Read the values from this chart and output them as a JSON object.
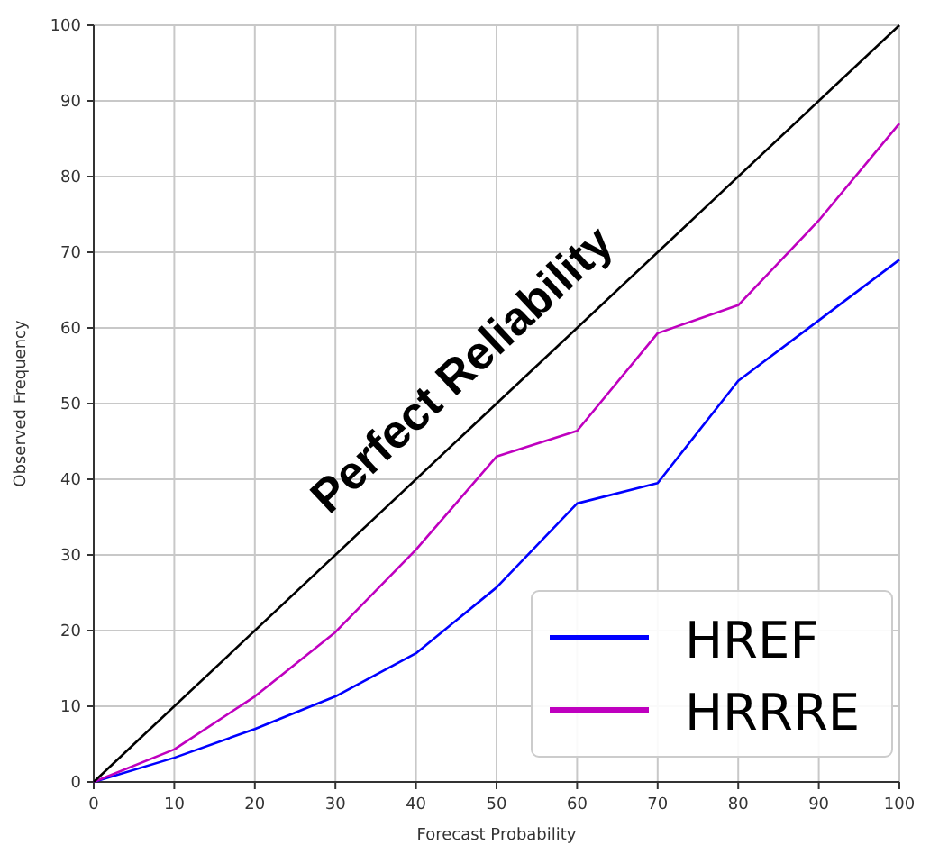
{
  "chart_data": {
    "type": "line",
    "xlabel": "Forecast Probability",
    "ylabel": "Observed Frequency",
    "x": [
      0,
      10,
      20,
      30,
      40,
      50,
      60,
      70,
      80,
      90,
      100
    ],
    "series": [
      {
        "name": "HREF",
        "color": "#0000ff",
        "values": [
          0,
          3.2,
          7,
          11.3,
          17,
          25.7,
          36.8,
          39.5,
          53,
          61,
          69
        ]
      },
      {
        "name": "HRRRE",
        "color": "#bf00bf",
        "values": [
          0,
          4.3,
          11.3,
          19.8,
          30.7,
          43,
          46.4,
          59.3,
          63,
          74.2,
          87
        ]
      },
      {
        "color": "#000000",
        "x": [
          0,
          100
        ],
        "values": [
          0,
          100
        ]
      }
    ],
    "annotations": [
      "Perfect Reliability"
    ],
    "xlim": [
      0,
      100
    ],
    "ylim": [
      0,
      100
    ],
    "xticks": [
      0,
      10,
      20,
      30,
      40,
      50,
      60,
      70,
      80,
      90,
      100
    ],
    "yticks": [
      0,
      10,
      20,
      30,
      40,
      50,
      60,
      70,
      80,
      90,
      100
    ],
    "grid": true,
    "legend": "bottom right",
    "marker": "none",
    "line_style": "solid"
  }
}
